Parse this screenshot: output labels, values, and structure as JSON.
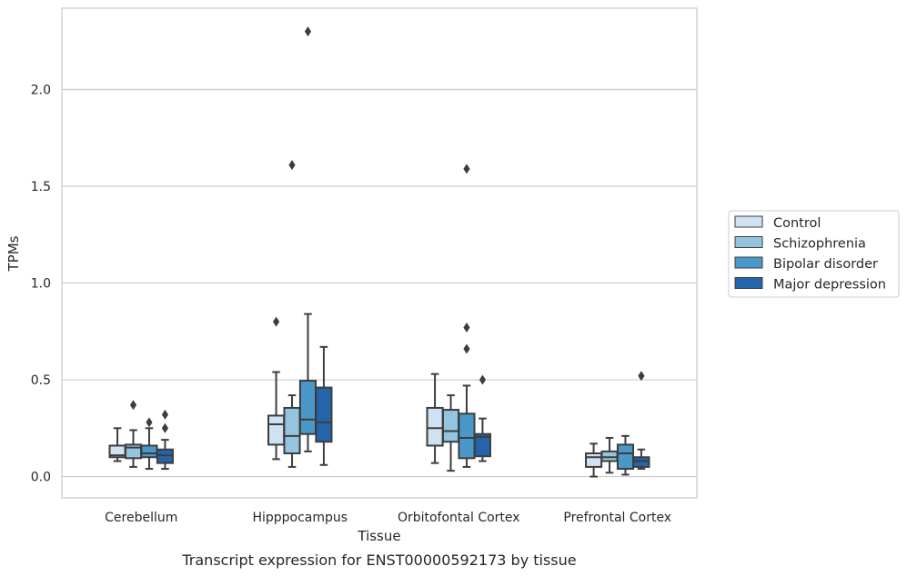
{
  "chart_data": {
    "type": "box",
    "caption": "Transcript expression for ENST00000592173 by tissue",
    "xlabel": "Tissue",
    "ylabel": "TPMs",
    "ylim": [
      -0.11,
      2.42
    ],
    "yticks": [
      0.0,
      0.5,
      1.0,
      1.5,
      2.0
    ],
    "ytick_labels": [
      "0.0",
      "0.5",
      "1.0",
      "1.5",
      "2.0"
    ],
    "grid": "horizontal",
    "legend_position": "right",
    "categories": [
      "Cerebellum",
      "Hipppocampus",
      "Orbitofontal Cortex",
      "Prefrontal Cortex"
    ],
    "series": [
      {
        "name": "Control",
        "color": "#d0e1f2",
        "boxes": [
          {
            "whislo": 0.08,
            "q1": 0.1,
            "med": 0.11,
            "q3": 0.16,
            "whishi": 0.25,
            "fliers": []
          },
          {
            "whislo": 0.09,
            "q1": 0.165,
            "med": 0.27,
            "q3": 0.315,
            "whishi": 0.54,
            "fliers": [
              0.8
            ]
          },
          {
            "whislo": 0.07,
            "q1": 0.16,
            "med": 0.25,
            "q3": 0.355,
            "whishi": 0.53,
            "fliers": []
          },
          {
            "whislo": 0.0,
            "q1": 0.05,
            "med": 0.1,
            "q3": 0.12,
            "whishi": 0.17,
            "fliers": []
          }
        ]
      },
      {
        "name": "Schizophrenia",
        "color": "#94c4df",
        "boxes": [
          {
            "whislo": 0.05,
            "q1": 0.095,
            "med": 0.15,
            "q3": 0.165,
            "whishi": 0.24,
            "fliers": [
              0.37
            ]
          },
          {
            "whislo": 0.05,
            "q1": 0.12,
            "med": 0.21,
            "q3": 0.355,
            "whishi": 0.42,
            "fliers": [
              1.61
            ]
          },
          {
            "whislo": 0.03,
            "q1": 0.18,
            "med": 0.235,
            "q3": 0.345,
            "whishi": 0.42,
            "fliers": []
          },
          {
            "whislo": 0.02,
            "q1": 0.08,
            "med": 0.1,
            "q3": 0.13,
            "whishi": 0.2,
            "fliers": []
          }
        ]
      },
      {
        "name": "Bipolar disorder",
        "color": "#4a98c9",
        "boxes": [
          {
            "whislo": 0.04,
            "q1": 0.1,
            "med": 0.12,
            "q3": 0.16,
            "whishi": 0.25,
            "fliers": [
              0.28
            ]
          },
          {
            "whislo": 0.13,
            "q1": 0.22,
            "med": 0.295,
            "q3": 0.495,
            "whishi": 0.84,
            "fliers": [
              2.3
            ]
          },
          {
            "whislo": 0.05,
            "q1": 0.095,
            "med": 0.2,
            "q3": 0.325,
            "whishi": 0.47,
            "fliers": [
              0.66,
              0.77,
              1.59
            ]
          },
          {
            "whislo": 0.01,
            "q1": 0.04,
            "med": 0.12,
            "q3": 0.165,
            "whishi": 0.21,
            "fliers": []
          }
        ]
      },
      {
        "name": "Major depression",
        "color": "#2464ab",
        "boxes": [
          {
            "whislo": 0.04,
            "q1": 0.07,
            "med": 0.11,
            "q3": 0.14,
            "whishi": 0.19,
            "fliers": [
              0.25,
              0.32
            ]
          },
          {
            "whislo": 0.06,
            "q1": 0.18,
            "med": 0.28,
            "q3": 0.46,
            "whishi": 0.67,
            "fliers": []
          },
          {
            "whislo": 0.08,
            "q1": 0.105,
            "med": 0.205,
            "q3": 0.22,
            "whishi": 0.3,
            "fliers": [
              0.5
            ]
          },
          {
            "whislo": 0.04,
            "q1": 0.05,
            "med": 0.08,
            "q3": 0.1,
            "whishi": 0.14,
            "fliers": [
              0.52
            ]
          }
        ]
      }
    ]
  }
}
